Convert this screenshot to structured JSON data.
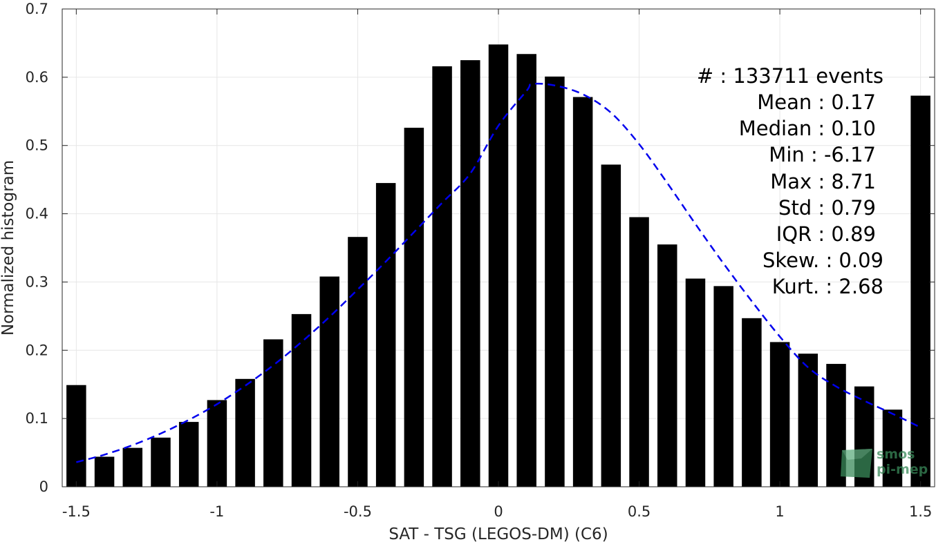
{
  "chart_data": {
    "type": "bar",
    "xlabel": "SAT - TSG (LEGOS-DM) (C6)",
    "ylabel": "Normalized histogram",
    "xlim": [
      -1.55,
      1.55
    ],
    "ylim": [
      0,
      0.7
    ],
    "xticks": [
      -1.5,
      -1,
      -0.5,
      0,
      0.5,
      1,
      1.5
    ],
    "xtick_labels": [
      "-1.5",
      "-1",
      "-0.5",
      "0",
      "0.5",
      "1",
      "1.5"
    ],
    "yticks": [
      0,
      0.1,
      0.2,
      0.3,
      0.4,
      0.5,
      0.6,
      0.7
    ],
    "ytick_labels": [
      "0",
      "0.1",
      "0.2",
      "0.3",
      "0.4",
      "0.5",
      "0.6",
      "0.7"
    ],
    "grid": true,
    "bar_color": "#000000",
    "bin_width": 0.1,
    "bins": [
      -1.5,
      -1.4,
      -1.3,
      -1.2,
      -1.1,
      -1.0,
      -0.9,
      -0.8,
      -0.7,
      -0.6,
      -0.5,
      -0.4,
      -0.3,
      -0.2,
      -0.1,
      0.0,
      0.1,
      0.2,
      0.3,
      0.4,
      0.5,
      0.6,
      0.7,
      0.8,
      0.9,
      1.0,
      1.1,
      1.2,
      1.3,
      1.4,
      1.5
    ],
    "values": [
      0.149,
      0.044,
      0.057,
      0.072,
      0.095,
      0.127,
      0.158,
      0.216,
      0.253,
      0.308,
      0.366,
      0.445,
      0.526,
      0.616,
      0.625,
      0.648,
      0.634,
      0.601,
      0.571,
      0.472,
      0.395,
      0.355,
      0.305,
      0.294,
      0.247,
      0.212,
      0.195,
      0.18,
      0.147,
      0.113,
      0.573
    ],
    "fit_curve": {
      "style": "dashed",
      "color": "#0000ee",
      "x": [
        -1.5,
        -1.4,
        -1.3,
        -1.2,
        -1.1,
        -1.0,
        -0.9,
        -0.8,
        -0.7,
        -0.6,
        -0.5,
        -0.4,
        -0.3,
        -0.2,
        -0.1,
        0.0,
        0.1,
        0.12,
        0.2,
        0.3,
        0.4,
        0.5,
        0.6,
        0.7,
        0.8,
        0.9,
        1.0,
        1.1,
        1.2,
        1.3,
        1.4,
        1.5
      ],
      "y": [
        0.036,
        0.047,
        0.061,
        0.078,
        0.098,
        0.121,
        0.148,
        0.178,
        0.212,
        0.249,
        0.289,
        0.33,
        0.373,
        0.416,
        0.459,
        0.529,
        0.58,
        0.59,
        0.588,
        0.575,
        0.548,
        0.502,
        0.445,
        0.385,
        0.327,
        0.272,
        0.22,
        0.175,
        0.147,
        0.126,
        0.107,
        0.087
      ]
    },
    "annotations": [
      "#  : 133711 events",
      "Mean : 0.17",
      "Median : 0.10",
      "Min : -6.17",
      "Max : 8.71",
      "Std : 0.79",
      "IQR : 0.89",
      "Skew. : 0.09",
      "Kurt. : 2.68"
    ]
  },
  "watermark": {
    "line1": "smos",
    "line2": "pi-mep",
    "color": "#3a8a5a"
  }
}
